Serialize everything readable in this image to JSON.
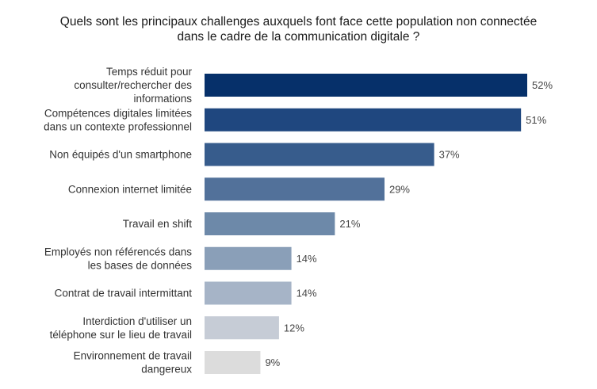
{
  "title_lines": [
    "Quels sont les principaux challenges auxquels font face cette population non connectée",
    "dans le cadre de la communication digitale ?"
  ],
  "chart_data": {
    "type": "bar",
    "orientation": "horizontal",
    "title": "Quels sont les principaux challenges auxquels font face cette population non connectée dans le cadre de la communication digitale ?",
    "categories": [
      [
        "Temps réduit pour",
        "consulter/rechercher des",
        "informations"
      ],
      [
        "Compétences digitales limitées",
        "dans un contexte professionnel"
      ],
      [
        "Non équipés d'un smartphone"
      ],
      [
        "Connexion internet limitée"
      ],
      [
        "Travail en shift"
      ],
      [
        "Employés non référencés dans",
        "les bases de données"
      ],
      [
        "Contrat de travail intermittant"
      ],
      [
        "Interdiction d'utiliser un",
        "téléphone sur le lieu de travail"
      ],
      [
        "Environnement de travail",
        "dangereux"
      ]
    ],
    "values": [
      52,
      51,
      37,
      29,
      21,
      14,
      14,
      12,
      9
    ],
    "value_labels": [
      "52%",
      "51%",
      "37%",
      "29%",
      "21%",
      "14%",
      "14%",
      "12%",
      "9%"
    ],
    "colors": [
      "#06306a",
      "#1f477f",
      "#375c8c",
      "#52719a",
      "#6d89a9",
      "#8a9fb8",
      "#a6b4c7",
      "#c6ccd6",
      "#dcdcdc"
    ],
    "xlim": [
      0,
      52
    ],
    "grid": false,
    "legend": "none"
  }
}
